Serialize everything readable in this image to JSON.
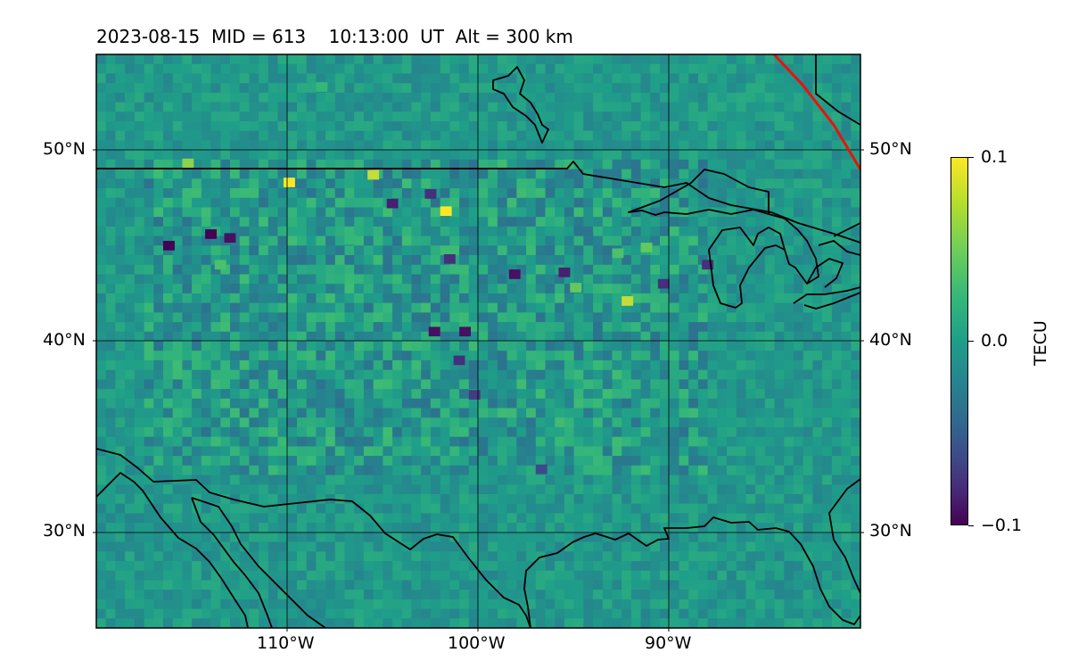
{
  "header": {
    "date": "2023-08-15",
    "mid": "MID = 613",
    "time": "10:13:00  UT",
    "altitude": "Alt = 300 km"
  },
  "map": {
    "lat_labels": [
      "50°N",
      "40°N",
      "30°N"
    ],
    "lon_labels": [
      "110°W",
      "100°W",
      "90°W"
    ],
    "extent": {
      "lon_min": -120,
      "lon_max": -80,
      "lat_min": 25,
      "lat_max": 55
    },
    "coastline_color": "#000000",
    "terminator_color": "#e8130c",
    "grid": true
  },
  "colorbar": {
    "label": "TECU",
    "ticks": [
      "0.1",
      "0.0",
      "−0.1"
    ],
    "range": [
      -0.1,
      0.1
    ],
    "colormap": "viridis"
  },
  "chart_data": {
    "type": "heatmap",
    "title": "2023-08-15  MID = 613    10:13:00  UT  Alt = 300 km",
    "xlabel": "",
    "ylabel": "",
    "x_ticks": [
      "110°W",
      "100°W",
      "90°W"
    ],
    "y_ticks": [
      "30°N",
      "40°N",
      "50°N"
    ],
    "xlim": [
      -120,
      -80
    ],
    "ylim": [
      25,
      55
    ],
    "value_range": [
      -0.1,
      0.1
    ],
    "value_label": "TECU",
    "background_value": 0.02,
    "hotspots": [
      {
        "lon": -116.5,
        "lat": 45.0,
        "value": -0.1
      },
      {
        "lon": -114.3,
        "lat": 45.6,
        "value": -0.1
      },
      {
        "lon": -113.3,
        "lat": 45.4,
        "value": -0.09
      },
      {
        "lon": -102.0,
        "lat": 46.8,
        "value": 0.1
      },
      {
        "lon": -110.2,
        "lat": 48.3,
        "value": 0.1
      },
      {
        "lon": -105.8,
        "lat": 48.7,
        "value": 0.09
      },
      {
        "lon": -115.5,
        "lat": 49.3,
        "value": 0.08
      },
      {
        "lon": -104.8,
        "lat": 47.2,
        "value": -0.08
      },
      {
        "lon": -102.8,
        "lat": 47.7,
        "value": -0.07
      },
      {
        "lon": -101.0,
        "lat": 40.5,
        "value": -0.09
      },
      {
        "lon": -102.6,
        "lat": 40.5,
        "value": -0.09
      },
      {
        "lon": -101.3,
        "lat": 39.0,
        "value": -0.07
      },
      {
        "lon": -98.4,
        "lat": 43.5,
        "value": -0.09
      },
      {
        "lon": -95.8,
        "lat": 43.6,
        "value": -0.08
      },
      {
        "lon": -95.2,
        "lat": 42.8,
        "value": 0.07
      },
      {
        "lon": -92.5,
        "lat": 42.1,
        "value": 0.09
      },
      {
        "lon": -93.0,
        "lat": 44.6,
        "value": 0.06
      },
      {
        "lon": -91.5,
        "lat": 44.9,
        "value": 0.07
      },
      {
        "lon": -101.8,
        "lat": 44.3,
        "value": -0.07
      },
      {
        "lon": -100.5,
        "lat": 37.2,
        "value": -0.06
      },
      {
        "lon": -97.0,
        "lat": 33.3,
        "value": -0.05
      },
      {
        "lon": -107.0,
        "lat": 45.3,
        "value": 0.05
      },
      {
        "lon": -113.8,
        "lat": 44.0,
        "value": 0.06
      },
      {
        "lon": -88.3,
        "lat": 44.0,
        "value": -0.07
      },
      {
        "lon": -108.5,
        "lat": 53.3,
        "value": 0.05
      },
      {
        "lon": -90.6,
        "lat": 43.0,
        "value": -0.07
      }
    ]
  }
}
